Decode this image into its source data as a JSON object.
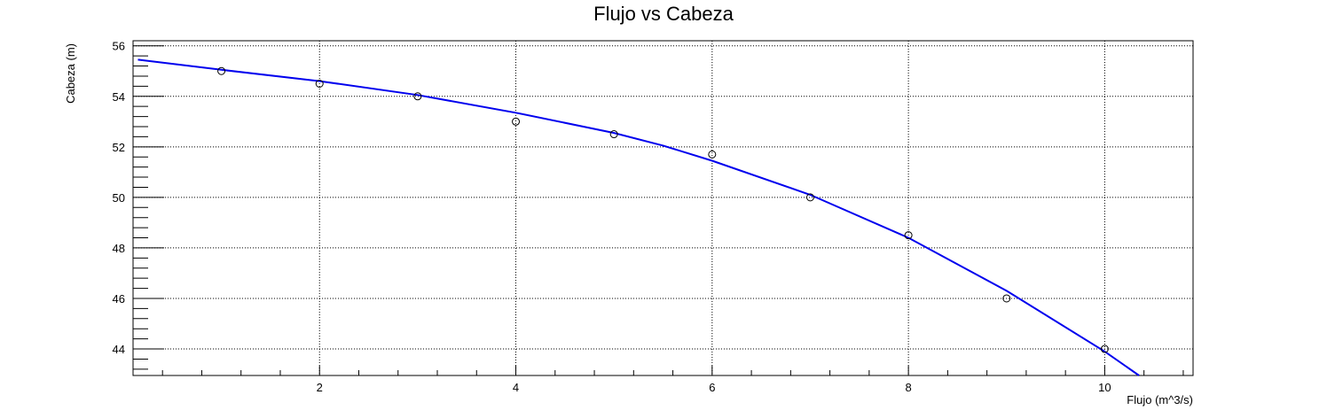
{
  "chart_data": {
    "type": "scatter",
    "title": "Flujo vs Cabeza",
    "xlabel": "Flujo (m^3/s)",
    "ylabel": "Cabeza (m)",
    "xlim": [
      0.1,
      10.9
    ],
    "ylim": [
      42.95,
      56.2
    ],
    "xticks": [
      2,
      4,
      6,
      8,
      10
    ],
    "yticks": [
      44,
      46,
      48,
      50,
      52,
      54,
      56
    ],
    "xtick_labels": [
      "2",
      "4",
      "6",
      "8",
      "10"
    ],
    "ytick_labels": [
      "44",
      "46",
      "48",
      "50",
      "52",
      "54",
      "56"
    ],
    "grid": true,
    "series": [
      {
        "kind": "markers",
        "marker": "open-circle",
        "color": "#000000",
        "x": [
          1,
          2,
          3,
          4,
          5,
          6,
          7,
          8,
          9,
          10
        ],
        "y": [
          55.0,
          54.5,
          54.0,
          53.0,
          52.5,
          51.7,
          50.0,
          48.5,
          46.0,
          44.0
        ]
      },
      {
        "kind": "fit-line",
        "color": "#0000ee",
        "x": [
          0.15,
          1,
          2,
          3,
          4,
          5,
          5.5,
          6,
          7,
          8,
          9,
          10,
          10.35
        ],
        "y": [
          55.45,
          55.05,
          54.6,
          54.05,
          53.35,
          52.55,
          52.05,
          51.45,
          50.1,
          48.4,
          46.3,
          43.9,
          42.95
        ]
      }
    ]
  }
}
